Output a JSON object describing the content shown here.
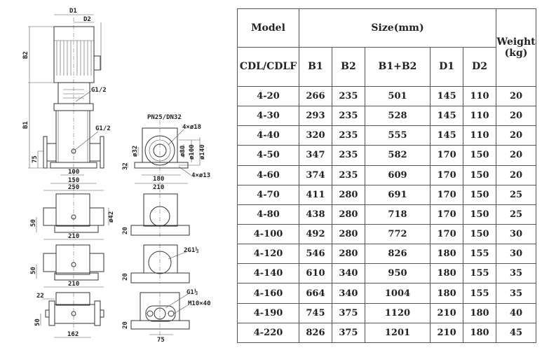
{
  "drawing": {
    "main_view": {
      "d1": "D1",
      "d2": "D2",
      "b2": "B2",
      "b1": "B1",
      "g_top": "G1/2",
      "g_body": "G1/2",
      "h75": "75",
      "w100": "100",
      "w150": "150",
      "w250": "250"
    },
    "flange_view": {
      "title": "PN25/DN32",
      "holes_top": "4×ø18",
      "holes_base": "4×ø13",
      "d32": "ø32",
      "d80": "ø80",
      "d100": "ø100",
      "d140": "ø140",
      "h32": "32",
      "w180": "180",
      "w210": "210"
    },
    "view_a": {
      "h50": "50",
      "w210": "210",
      "d42": "ø42",
      "h20": "20"
    },
    "view_b": {
      "h50": "50",
      "w210": "210",
      "thread": "2G1½",
      "h20": "20"
    },
    "view_c": {
      "w22": "22",
      "h50": "50",
      "w162": "162",
      "thread": "G1½",
      "bolt": "M10×40",
      "h20": "20",
      "w75": "75"
    }
  },
  "table": {
    "header": {
      "model": "Model",
      "size": "Size(mm)",
      "weight": "Weight (kg)",
      "series": "CDL/CDLF",
      "cols": [
        "B1",
        "B2",
        "B1+B2",
        "D1",
        "D2"
      ]
    },
    "rows": [
      [
        "4-20",
        "266",
        "235",
        "501",
        "145",
        "110",
        "20"
      ],
      [
        "4-30",
        "293",
        "235",
        "528",
        "145",
        "110",
        "20"
      ],
      [
        "4-40",
        "320",
        "235",
        "555",
        "145",
        "110",
        "20"
      ],
      [
        "4-50",
        "347",
        "235",
        "582",
        "170",
        "150",
        "20"
      ],
      [
        "4-60",
        "374",
        "235",
        "609",
        "170",
        "150",
        "20"
      ],
      [
        "4-70",
        "411",
        "280",
        "691",
        "170",
        "150",
        "25"
      ],
      [
        "4-80",
        "438",
        "280",
        "718",
        "170",
        "150",
        "25"
      ],
      [
        "4-100",
        "492",
        "280",
        "772",
        "170",
        "150",
        "30"
      ],
      [
        "4-120",
        "546",
        "280",
        "826",
        "180",
        "155",
        "30"
      ],
      [
        "4-140",
        "610",
        "340",
        "950",
        "180",
        "155",
        "35"
      ],
      [
        "4-160",
        "664",
        "340",
        "1004",
        "180",
        "155",
        "35"
      ],
      [
        "4-190",
        "745",
        "375",
        "1120",
        "210",
        "180",
        "40"
      ],
      [
        "4-220",
        "826",
        "375",
        "1201",
        "210",
        "180",
        "45"
      ]
    ]
  }
}
